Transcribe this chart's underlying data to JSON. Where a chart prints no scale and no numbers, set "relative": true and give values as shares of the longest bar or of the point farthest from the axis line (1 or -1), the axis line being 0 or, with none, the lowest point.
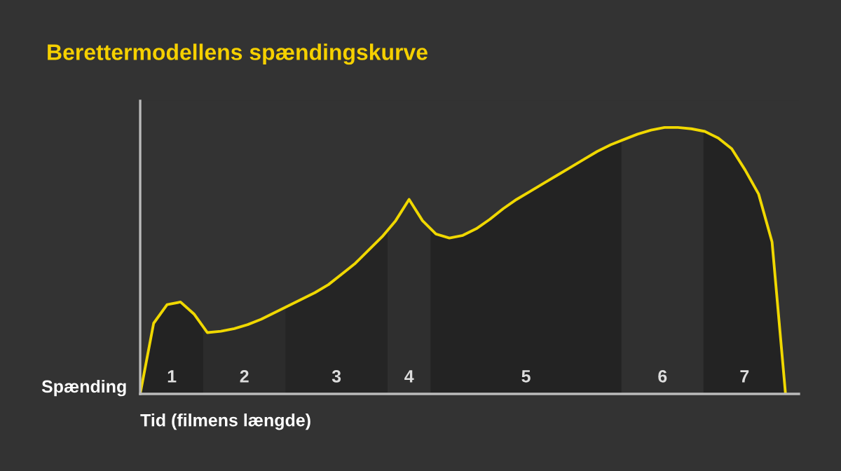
{
  "chart_data": {
    "type": "line",
    "title": "Berettermodellens spændingskurve",
    "xlabel": "Tid (filmens længde)",
    "ylabel": "Spænding",
    "relative": true,
    "color": "#f0d800",
    "categories": [
      null,
      null,
      null,
      null,
      null,
      null,
      null,
      null,
      null,
      null,
      null,
      null,
      null,
      null,
      null,
      null,
      null,
      null,
      null,
      null,
      null,
      null,
      null,
      null,
      null,
      null,
      null,
      null,
      null,
      null,
      null,
      null,
      null,
      null,
      null,
      null,
      null,
      null,
      null,
      null,
      null,
      null,
      null,
      null,
      null,
      null,
      null,
      null,
      null,
      null
    ],
    "values": [
      0,
      0.265,
      0.335,
      0.345,
      0.3,
      0.23,
      0.235,
      0.245,
      0.26,
      0.28,
      0.305,
      0.33,
      0.355,
      0.38,
      0.41,
      0.45,
      0.49,
      0.54,
      0.59,
      0.65,
      0.73,
      0.65,
      0.6,
      0.585,
      0.595,
      0.62,
      0.655,
      0.695,
      0.73,
      0.76,
      0.79,
      0.82,
      0.85,
      0.88,
      0.91,
      0.935,
      0.955,
      0.975,
      0.99,
      1,
      1,
      0.995,
      0.985,
      0.96,
      0.92,
      0.84,
      0.75,
      0.57,
      0,
      null
    ],
    "annotations": [
      "1",
      "2",
      "3",
      "4",
      "5",
      "6",
      "7"
    ]
  }
}
